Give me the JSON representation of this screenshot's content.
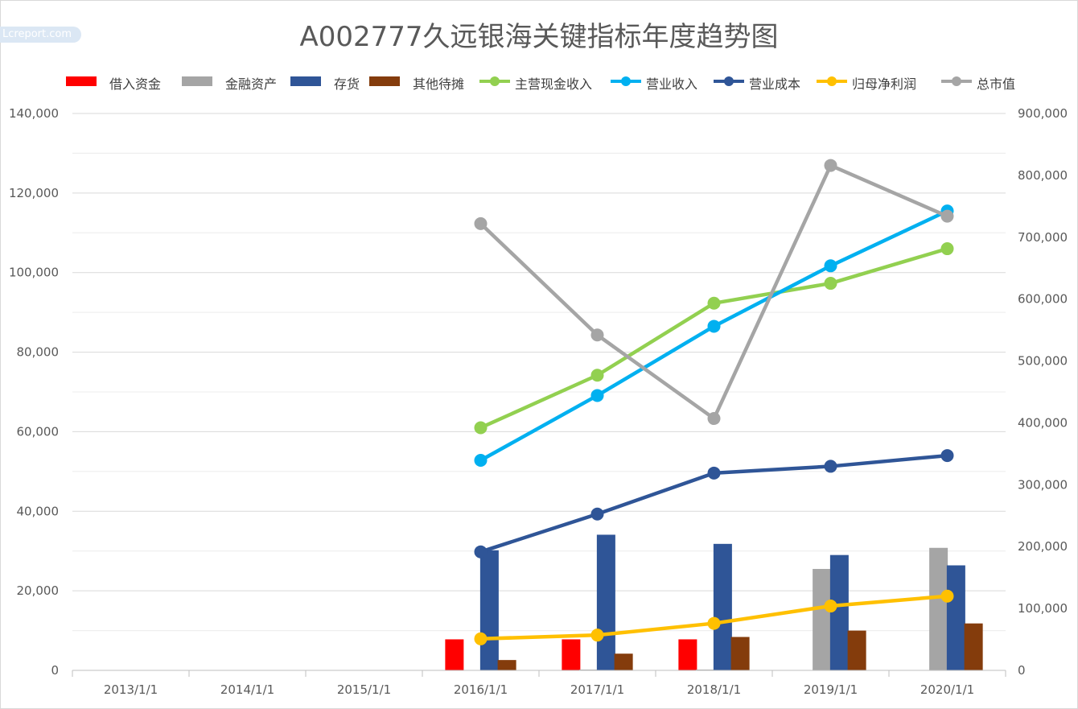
{
  "watermark": "Lcreport.com",
  "chart_data": {
    "type": "bar+line",
    "title": "A002777久远银海关键指标年度趋势图",
    "categories": [
      "2013/1/1",
      "2014/1/1",
      "2015/1/1",
      "2016/1/1",
      "2017/1/1",
      "2018/1/1",
      "2019/1/1",
      "2020/1/1"
    ],
    "y_left": {
      "min": 0,
      "max": 140000,
      "major_step": 20000,
      "ticks": [
        "0",
        "20,000",
        "40,000",
        "60,000",
        "80,000",
        "100,000",
        "120,000",
        "140,000"
      ]
    },
    "y_right": {
      "min": 0,
      "max": 900000,
      "major_step": 100000,
      "ticks": [
        "0",
        "100,000",
        "200,000",
        "300,000",
        "400,000",
        "500,000",
        "600,000",
        "700,000",
        "800,000",
        "900,000"
      ]
    },
    "grid": true,
    "legend_position": "top",
    "bar_series": [
      {
        "name": "借入资金",
        "color": "#ff0000",
        "axis": "left",
        "values": [
          null,
          null,
          null,
          7800,
          7800,
          7800,
          null,
          null
        ]
      },
      {
        "name": "金融资产",
        "color": "#a5a5a5",
        "axis": "left",
        "values": [
          null,
          null,
          null,
          null,
          200,
          200,
          25500,
          30800
        ]
      },
      {
        "name": "存货",
        "color": "#2f5597",
        "axis": "left",
        "values": [
          null,
          null,
          null,
          30200,
          34100,
          31800,
          29000,
          26400
        ]
      },
      {
        "name": "其他待摊",
        "color": "#843c0c",
        "axis": "left",
        "values": [
          null,
          null,
          null,
          2600,
          4200,
          8400,
          10000,
          11800
        ]
      }
    ],
    "line_series": [
      {
        "name": "主营现金收入",
        "color": "#92d050",
        "axis": "left",
        "values": [
          null,
          null,
          null,
          61000,
          74200,
          92300,
          97300,
          106000
        ]
      },
      {
        "name": "营业收入",
        "color": "#00b0f0",
        "axis": "left",
        "values": [
          null,
          null,
          null,
          52800,
          69100,
          86500,
          101700,
          115500
        ]
      },
      {
        "name": "营业成本",
        "color": "#2f5597",
        "axis": "left",
        "values": [
          null,
          null,
          null,
          29800,
          39300,
          49600,
          51300,
          54000
        ]
      },
      {
        "name": "归母净利润",
        "color": "#ffc000",
        "axis": "right",
        "values": [
          null,
          null,
          null,
          51000,
          57000,
          76000,
          104000,
          120000
        ]
      },
      {
        "name": "总市值",
        "color": "#a5a5a5",
        "axis": "right",
        "values": [
          null,
          null,
          null,
          722000,
          542000,
          407000,
          816000,
          734000
        ]
      }
    ]
  }
}
